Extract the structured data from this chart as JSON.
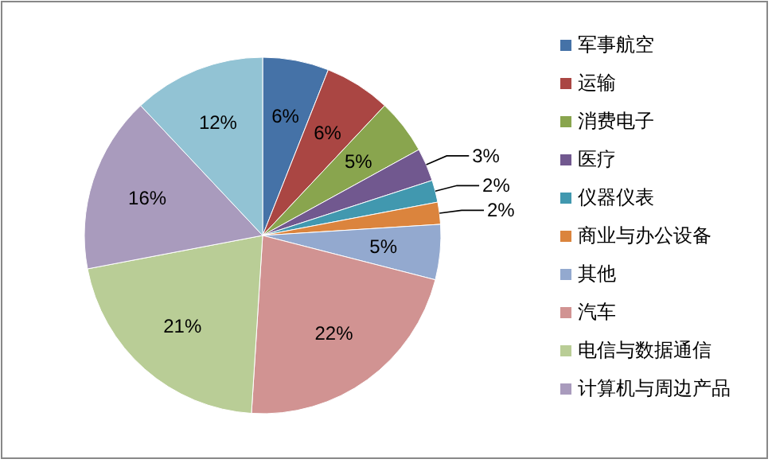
{
  "chart_data": {
    "type": "pie",
    "categories": [
      "军事航空",
      "运输",
      "消费电子",
      "医疗",
      "仪器仪表",
      "商业与办公设备",
      "其他",
      "汽车",
      "电信与数据通信",
      "计算机与周边产品",
      null
    ],
    "values": [
      6,
      6,
      5,
      3,
      2,
      2,
      5,
      22,
      21,
      16,
      12
    ],
    "colors": [
      "#4572a7",
      "#aa4643",
      "#89a54e",
      "#71588f",
      "#4198af",
      "#db843d",
      "#93a9cf",
      "#d19392",
      "#b9cd96",
      "#a99bbd",
      "#92c3d4"
    ],
    "value_labels": [
      "6%",
      "6%",
      "5%",
      "3%",
      "2%",
      "2%",
      "5%",
      "22%",
      "21%",
      "16%",
      "12%"
    ],
    "legend": "right"
  }
}
